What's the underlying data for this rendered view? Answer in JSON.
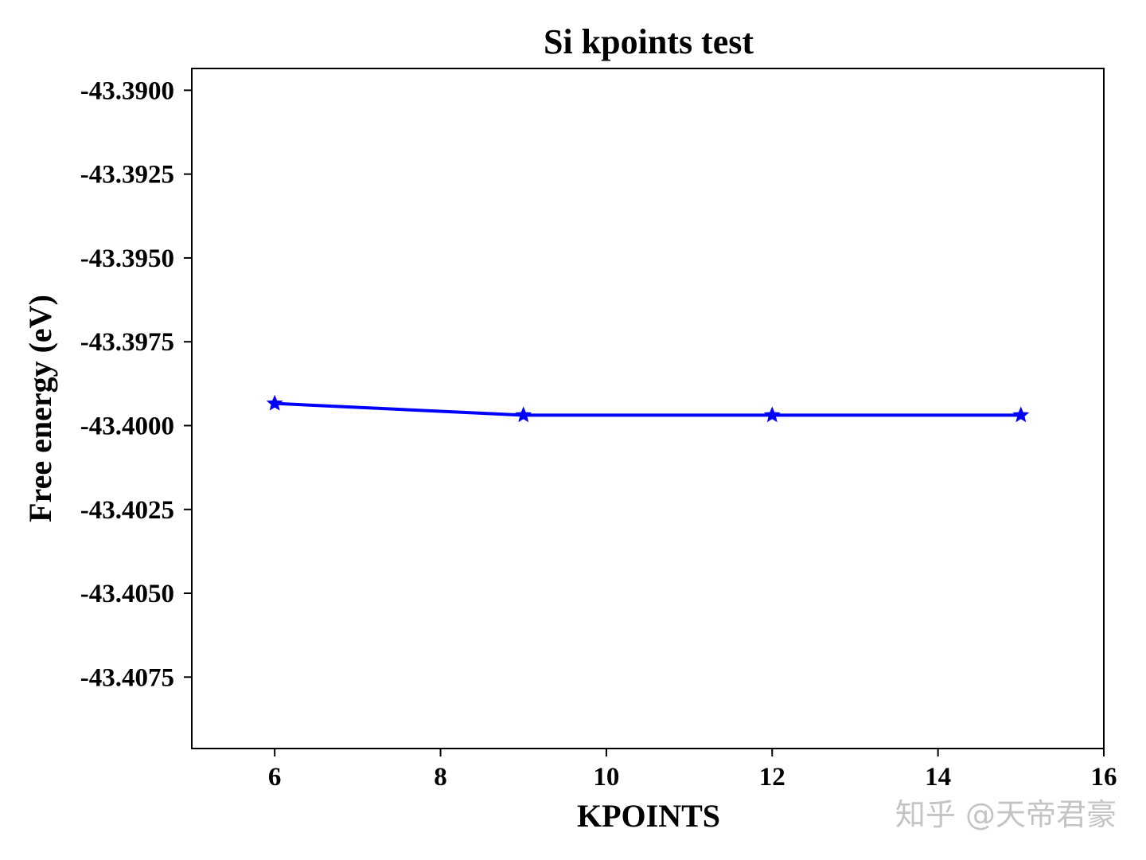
{
  "chart_data": {
    "type": "line",
    "title": "Si kpoints test",
    "xlabel": "KPOINTS",
    "ylabel": "Free energy (eV)",
    "x": [
      6,
      9,
      12,
      15
    ],
    "series": [
      {
        "values": [
          -43.39934,
          -43.39969,
          -43.39969,
          -43.39969
        ]
      }
    ],
    "marker": "star",
    "line_color": "#0000ff",
    "xlim": [
      5,
      16
    ],
    "ylim": [
      -43.40963,
      -43.38935
    ],
    "xticks": [
      6,
      8,
      10,
      12,
      14,
      16
    ],
    "xtick_labels": [
      "6",
      "8",
      "10",
      "12",
      "14",
      "16"
    ],
    "yticks": [
      -43.39,
      -43.3925,
      -43.395,
      -43.3975,
      -43.4,
      -43.4025,
      -43.405,
      -43.4075
    ],
    "ytick_labels": [
      "-43.3900",
      "-43.3925",
      "-43.3950",
      "-43.3975",
      "-43.4000",
      "-43.4025",
      "-43.4050",
      "-43.4075"
    ],
    "grid": false,
    "legend": null
  },
  "watermark": "知乎 @天帝君豪"
}
